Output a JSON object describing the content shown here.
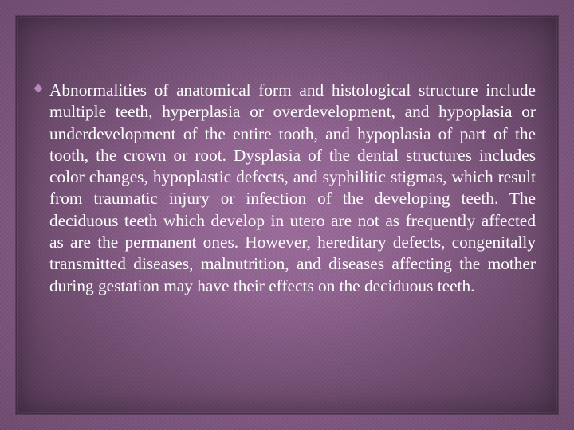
{
  "slide": {
    "background_color": "#9a6a9a",
    "texture_dark": "#6f4570",
    "texture_light": "#a67ca6",
    "frame_border_color": "#3c1e3c",
    "bullet_color": "#b889b8",
    "text_color": "#ffffff",
    "font_family": "Georgia, 'Times New Roman', serif",
    "font_size_pt": 16,
    "line_height": 1.28,
    "body_text": "Abnormalities of anatomical form and histological structure include multiple teeth, hyperplasia or overdevelopment, and hypoplasia or underdevelopment of the entire tooth, and hypoplasia of part of the tooth, the crown or root. Dysplasia of the dental structures includes color changes, hypoplastic defects, and syphilitic stigmas, which result from traumatic injury or infection of the developing teeth. The deciduous teeth which develop in utero are not as frequently affected as are the permanent ones. However, hereditary defects, congenitally transmitted diseases, malnutrition, and diseases affecting the mother during gestation may have their effects on the deciduous teeth."
  }
}
